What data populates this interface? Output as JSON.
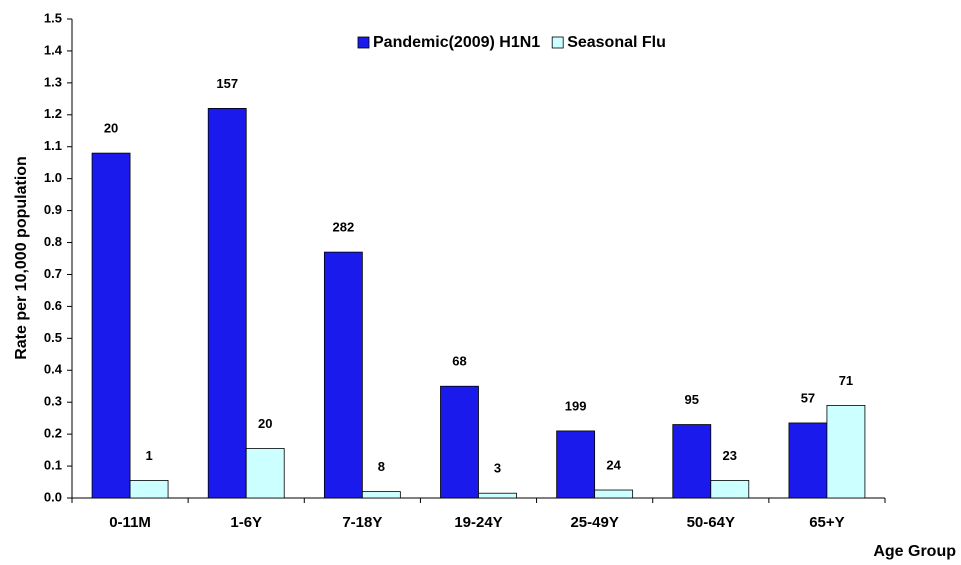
{
  "chart_data": {
    "type": "bar",
    "x_label": "Age Group",
    "y_label": "Rate per 10,000 population",
    "categories": [
      "0-11M",
      "1-6Y",
      "7-18Y",
      "19-24Y",
      "25-49Y",
      "50-64Y",
      "65+Y"
    ],
    "series": [
      {
        "name": "Pandemic(2009) H1N1",
        "color": "#1a1aec",
        "values": [
          1.08,
          1.22,
          0.77,
          0.35,
          0.21,
          0.23,
          0.235
        ],
        "bar_labels": [
          "20",
          "157",
          "282",
          "68",
          "199",
          "95",
          "57"
        ]
      },
      {
        "name": "Seasonal Flu",
        "color": "#ccffff",
        "values": [
          0.055,
          0.155,
          0.02,
          0.015,
          0.025,
          0.055,
          0.29
        ],
        "bar_labels": [
          "1",
          "20",
          "8",
          "3",
          "24",
          "23",
          "71"
        ]
      }
    ],
    "ylim": [
      0,
      1.5
    ],
    "yticks": [
      {
        "value": 0,
        "label": "0.0"
      },
      0.1,
      0.2,
      0.3,
      0.4,
      0.5,
      0.6,
      0.7,
      0.8,
      0.9,
      {
        "value": 1,
        "label": "1.0"
      },
      1.1,
      1.2,
      1.3,
      1.4,
      1.5
    ],
    "grid": false,
    "legend": "top"
  }
}
